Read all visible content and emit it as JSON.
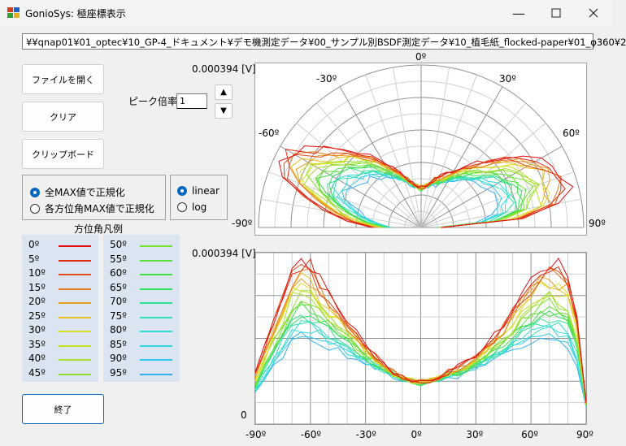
{
  "window": {
    "title": "GonioSys: 極座標表示"
  },
  "path": "¥¥qnap01¥01_optec¥10_GP-4_ドキュメント¥デモ機測定データ¥00_サンプル別BSDF測定データ¥10_植毛紙_flocked-paper¥01_φ360¥2",
  "buttons": {
    "open": "ファイルを開く",
    "clear": "クリア",
    "clipboard": "クリップボード",
    "exit": "終了"
  },
  "peak": {
    "label": "ピーク倍率",
    "value": "1"
  },
  "normalize": {
    "all_max": "全MAX値で正規化",
    "each_max": "各方位角MAX値で正規化",
    "selected": "all_max"
  },
  "scale": {
    "linear": "linear",
    "log": "log",
    "selected": "linear"
  },
  "legend": {
    "title": "方位角凡例",
    "items": [
      {
        "label": "0º",
        "color": "#e01010"
      },
      {
        "label": "5º",
        "color": "#e02a10"
      },
      {
        "label": "10º",
        "color": "#e04a18"
      },
      {
        "label": "15º",
        "color": "#e87a20"
      },
      {
        "label": "20º",
        "color": "#e8a020"
      },
      {
        "label": "25º",
        "color": "#e8c020"
      },
      {
        "label": "30º",
        "color": "#e0e020"
      },
      {
        "label": "35º",
        "color": "#c8e020"
      },
      {
        "label": "40º",
        "color": "#a8e030"
      },
      {
        "label": "45º",
        "color": "#90e030"
      },
      {
        "label": "50º",
        "color": "#78e030"
      },
      {
        "label": "55º",
        "color": "#60e040"
      },
      {
        "label": "60º",
        "color": "#40e040"
      },
      {
        "label": "65º",
        "color": "#30e060"
      },
      {
        "label": "70º",
        "color": "#30e090"
      },
      {
        "label": "75º",
        "color": "#30e0b0"
      },
      {
        "label": "80º",
        "color": "#30e0d0"
      },
      {
        "label": "85º",
        "color": "#30d8e0"
      },
      {
        "label": "90º",
        "color": "#30c8f0"
      },
      {
        "label": "95º",
        "color": "#30b0f0"
      }
    ]
  },
  "polar_plot": {
    "max_label": "0.000394 [V]",
    "angle_labels": [
      "0º",
      "-30º",
      "30º",
      "-60º",
      "60º",
      "-90º",
      "90º"
    ]
  },
  "cartesian_plot": {
    "max_label": "0.000394 [V]",
    "zero_label": "0",
    "x_ticks": [
      "-90º",
      "-60º",
      "-30º",
      "0º",
      "30º",
      "60º",
      "90º"
    ]
  },
  "chart_data": {
    "type": "line",
    "x": [
      -90,
      -85,
      -80,
      -75,
      -70,
      -65,
      -60,
      -55,
      -50,
      -45,
      -40,
      -35,
      -30,
      -25,
      -20,
      -15,
      -10,
      -5,
      0,
      5,
      10,
      15,
      20,
      25,
      30,
      35,
      40,
      45,
      50,
      55,
      60,
      65,
      70,
      75,
      80,
      85,
      90
    ],
    "ylim": [
      0,
      0.000394
    ],
    "xlim": [
      -90,
      90
    ],
    "series_shape": {
      "peak_0": [
        0.00012,
        0.00018,
        0.00024,
        0.0003,
        0.00036,
        0.00038,
        0.00037,
        0.00033,
        0.0003,
        0.00027,
        0.00024,
        0.00021,
        0.00018,
        0.00016,
        0.00014,
        0.00012,
        0.00011,
        0.0001,
        0.0001,
        0.0001,
        0.00011,
        0.00012,
        0.00013,
        0.00014,
        0.00016,
        0.00018,
        0.0002,
        0.00023,
        0.00026,
        0.0003,
        0.00033,
        0.00036,
        0.00037,
        0.00036,
        0.00034,
        0.00025,
        5e-05
      ],
      "peak_90": [
        7e-05,
        0.0001,
        0.00013,
        0.00016,
        0.00019,
        0.0002,
        0.0002,
        0.00019,
        0.00018,
        0.00017,
        0.00016,
        0.00015,
        0.00014,
        0.00013,
        0.00012,
        0.00011,
        0.0001,
        0.0001,
        9e-05,
        0.0001,
        0.0001,
        0.00011,
        0.00011,
        0.00012,
        0.00013,
        0.00014,
        0.00015,
        0.00016,
        0.00017,
        0.00018,
        0.00019,
        0.0002,
        0.0002,
        0.00019,
        0.00018,
        0.00014,
        4e-05
      ]
    }
  }
}
